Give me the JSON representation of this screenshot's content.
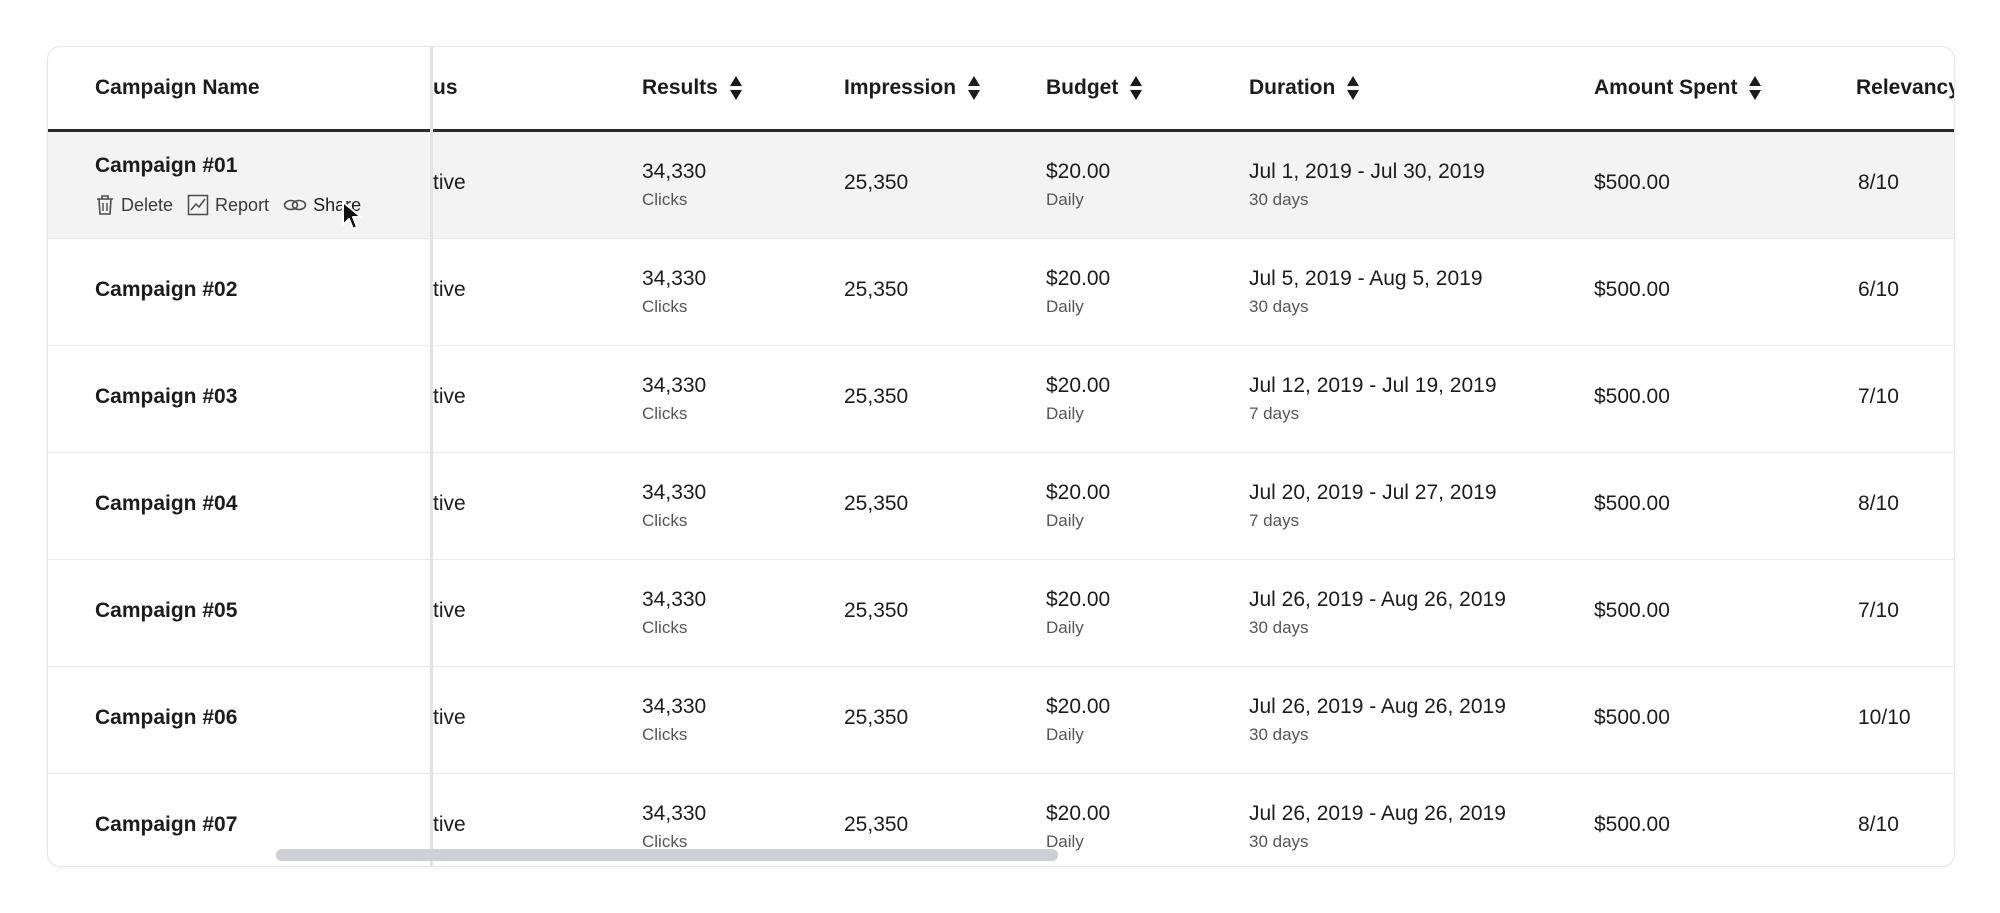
{
  "columns": {
    "campaign_name": "Campaign Name",
    "status": "us",
    "results": "Results",
    "impression": "Impression",
    "budget": "Budget",
    "duration": "Duration",
    "amount_spent": "Amount Spent",
    "relevancy": "Relevancy"
  },
  "row_actions": {
    "delete": "Delete",
    "report": "Report",
    "share": "Share"
  },
  "rows": [
    {
      "name": "Campaign #01",
      "status": "tive",
      "results": "34,330",
      "results_unit": "Clicks",
      "impression": "25,350",
      "budget": "$20.00",
      "budget_period": "Daily",
      "duration": "Jul 1, 2019 - Jul 30, 2019",
      "duration_days": "30 days",
      "amount_spent": "$500.00",
      "relevancy": "8/10"
    },
    {
      "name": "Campaign #02",
      "status": "tive",
      "results": "34,330",
      "results_unit": "Clicks",
      "impression": "25,350",
      "budget": "$20.00",
      "budget_period": "Daily",
      "duration": "Jul 5, 2019 - Aug 5, 2019",
      "duration_days": "30 days",
      "amount_spent": "$500.00",
      "relevancy": "6/10"
    },
    {
      "name": "Campaign #03",
      "status": "tive",
      "results": "34,330",
      "results_unit": "Clicks",
      "impression": "25,350",
      "budget": "$20.00",
      "budget_period": "Daily",
      "duration": "Jul 12, 2019 - Jul 19, 2019",
      "duration_days": "7 days",
      "amount_spent": "$500.00",
      "relevancy": "7/10"
    },
    {
      "name": "Campaign #04",
      "status": "tive",
      "results": "34,330",
      "results_unit": "Clicks",
      "impression": "25,350",
      "budget": "$20.00",
      "budget_period": "Daily",
      "duration": "Jul 20, 2019 - Jul 27, 2019",
      "duration_days": "7 days",
      "amount_spent": "$500.00",
      "relevancy": "8/10"
    },
    {
      "name": "Campaign #05",
      "status": "tive",
      "results": "34,330",
      "results_unit": "Clicks",
      "impression": "25,350",
      "budget": "$20.00",
      "budget_period": "Daily",
      "duration": "Jul 26, 2019 - Aug 26, 2019",
      "duration_days": "30 days",
      "amount_spent": "$500.00",
      "relevancy": "7/10"
    },
    {
      "name": "Campaign #06",
      "status": "tive",
      "results": "34,330",
      "results_unit": "Clicks",
      "impression": "25,350",
      "budget": "$20.00",
      "budget_period": "Daily",
      "duration": "Jul 26, 2019 - Aug 26, 2019",
      "duration_days": "30 days",
      "amount_spent": "$500.00",
      "relevancy": "10/10"
    },
    {
      "name": "Campaign #07",
      "status": "tive",
      "results": "34,330",
      "results_unit": "Clicks",
      "impression": "25,350",
      "budget": "$20.00",
      "budget_period": "Daily",
      "duration": "Jul 26, 2019 - Aug 26, 2019",
      "duration_days": "30 days",
      "amount_spent": "$500.00",
      "relevancy": "8/10"
    }
  ],
  "colors": {
    "hover_row": "#f3f3f3",
    "header_rule": "#2b2b2b",
    "scrollbar": "#cfcfd6"
  }
}
